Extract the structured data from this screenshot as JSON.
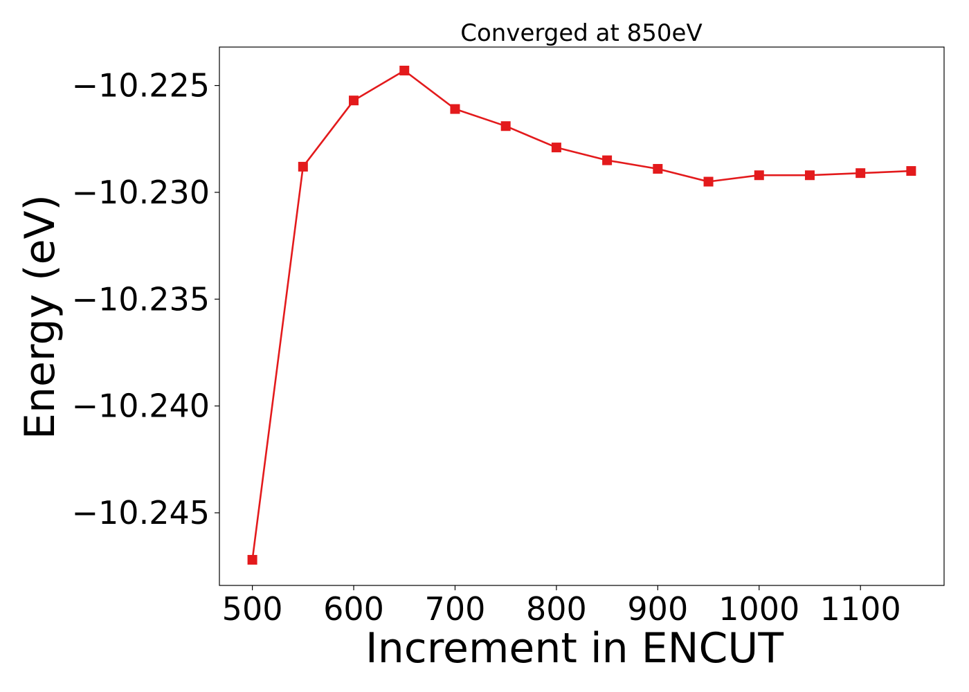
{
  "chart_data": {
    "type": "line",
    "title": "Converged at 850eV",
    "xlabel": "Increment in ENCUT",
    "ylabel": "Energy (eV)",
    "xlim": [
      467.5,
      1182.5
    ],
    "ylim": [
      -10.2484,
      -10.2232
    ],
    "grid": false,
    "legend": "none",
    "xticks": [
      500,
      600,
      700,
      800,
      900,
      1000,
      1100
    ],
    "xtick_labels": [
      "500",
      "600",
      "700",
      "800",
      "900",
      "1000",
      "1100"
    ],
    "yticks": [
      -10.245,
      -10.24,
      -10.235,
      -10.23,
      -10.225
    ],
    "ytick_labels": [
      "−10.245",
      "−10.240",
      "−10.235",
      "−10.230",
      "−10.225"
    ],
    "series": [
      {
        "color": "#e31a1c",
        "marker": "square",
        "x": [
          500,
          550,
          600,
          650,
          700,
          750,
          800,
          850,
          900,
          950,
          1000,
          1050,
          1100,
          1150
        ],
        "y": [
          -10.2472,
          -10.2288,
          -10.2257,
          -10.2243,
          -10.2261,
          -10.2269,
          -10.2279,
          -10.2285,
          -10.2289,
          -10.2295,
          -10.2292,
          -10.2292,
          -10.2291,
          -10.229
        ]
      }
    ]
  }
}
